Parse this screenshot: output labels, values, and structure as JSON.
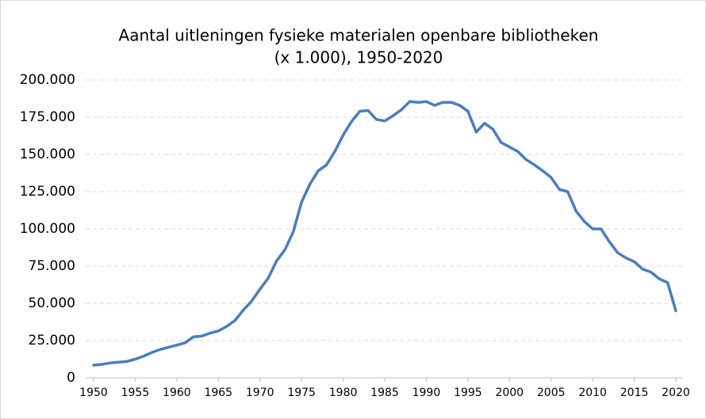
{
  "chart_data": {
    "type": "line",
    "title": [
      "Aantal uitleningen fysieke materialen openbare bibliotheken",
      "(x 1.000), 1950-2020"
    ],
    "x": [
      1950,
      1951,
      1952,
      1953,
      1954,
      1955,
      1956,
      1957,
      1958,
      1959,
      1960,
      1961,
      1962,
      1963,
      1964,
      1965,
      1966,
      1967,
      1968,
      1969,
      1970,
      1971,
      1972,
      1973,
      1974,
      1975,
      1976,
      1977,
      1978,
      1979,
      1980,
      1981,
      1982,
      1983,
      1984,
      1985,
      1986,
      1987,
      1988,
      1989,
      1990,
      1991,
      1992,
      1993,
      1994,
      1995,
      1996,
      1997,
      1998,
      1999,
      2000,
      2001,
      2002,
      2003,
      2004,
      2005,
      2006,
      2007,
      2008,
      2009,
      2010,
      2011,
      2012,
      2013,
      2014,
      2015,
      2016,
      2017,
      2018,
      2019,
      2020
    ],
    "series": [
      {
        "color": "#4a7dc0",
        "values": [
          8500,
          9000,
          10000,
          10500,
          11000,
          12500,
          14500,
          17000,
          19000,
          20500,
          22000,
          23500,
          27500,
          28000,
          30000,
          31500,
          34500,
          38500,
          45500,
          51500,
          59500,
          67000,
          78500,
          86000,
          98000,
          118000,
          130000,
          139000,
          143000,
          152000,
          163000,
          172000,
          179000,
          179500,
          173500,
          172500,
          176000,
          180000,
          185500,
          185000,
          185500,
          183000,
          185000,
          185000,
          183000,
          179000,
          165000,
          171000,
          167000,
          158000,
          155000,
          152000,
          146500,
          143000,
          139000,
          134500,
          126500,
          125000,
          112000,
          105000,
          100000,
          100000,
          91500,
          84000,
          80500,
          78000,
          73000,
          71000,
          66500,
          64000,
          45000
        ]
      }
    ],
    "xlim": [
      1950,
      2020
    ],
    "xticks": [
      1950,
      1955,
      1960,
      1965,
      1970,
      1975,
      1980,
      1985,
      1990,
      1995,
      2000,
      2005,
      2010,
      2015,
      2020
    ],
    "ylim": [
      0,
      200000
    ],
    "yticks": [
      0,
      {
        "value": 25000,
        "label": "25.000"
      },
      {
        "value": 50000,
        "label": "50.000"
      },
      {
        "value": 75000,
        "label": "75.000"
      },
      {
        "value": 100000,
        "label": "100.000"
      },
      {
        "value": 125000,
        "label": "125.000"
      },
      {
        "value": 150000,
        "label": "150.000"
      },
      {
        "value": 175000,
        "label": "175.000"
      },
      {
        "value": 200000,
        "label": "200.000"
      }
    ],
    "grid": true
  }
}
